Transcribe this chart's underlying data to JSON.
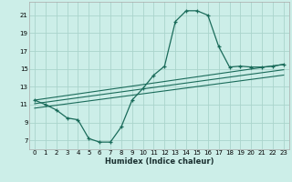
{
  "xlabel": "Humidex (Indice chaleur)",
  "bg_color": "#cceee8",
  "grid_color": "#aad4cc",
  "line_color": "#1a6b5a",
  "xlim": [
    -0.5,
    23.5
  ],
  "ylim": [
    6.0,
    22.5
  ],
  "xticks": [
    0,
    1,
    2,
    3,
    4,
    5,
    6,
    7,
    8,
    9,
    10,
    11,
    12,
    13,
    14,
    15,
    16,
    17,
    18,
    19,
    20,
    21,
    22,
    23
  ],
  "yticks": [
    7,
    9,
    11,
    13,
    15,
    17,
    19,
    21
  ],
  "main_x": [
    0,
    1,
    2,
    3,
    4,
    5,
    6,
    7,
    8,
    9,
    10,
    11,
    12,
    13,
    14,
    15,
    16,
    17,
    18,
    19,
    20,
    21,
    22,
    23
  ],
  "main_y": [
    11.5,
    11.0,
    10.4,
    9.5,
    9.3,
    7.2,
    6.8,
    6.8,
    8.5,
    11.5,
    12.8,
    14.3,
    15.3,
    20.3,
    21.5,
    21.5,
    21.0,
    17.5,
    15.2,
    15.3,
    15.2,
    15.2,
    15.3,
    15.5
  ],
  "line1_x": [
    0,
    23
  ],
  "line1_y": [
    11.5,
    15.5
  ],
  "line2_x": [
    0,
    23
  ],
  "line2_y": [
    11.1,
    14.9
  ],
  "line3_x": [
    0,
    23
  ],
  "line3_y": [
    10.6,
    14.3
  ]
}
